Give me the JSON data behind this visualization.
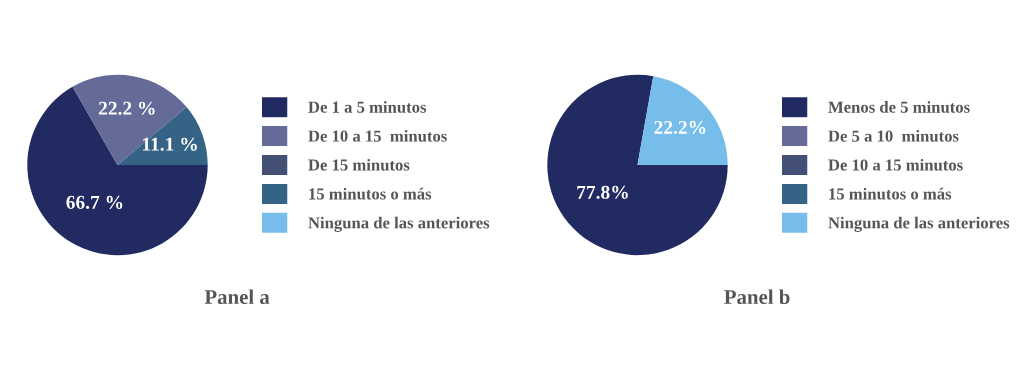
{
  "chart_data": [
    {
      "type": "pie",
      "title": "Panel a",
      "categories": [
        "De 1 a 5 minutos",
        "De 10 a 15  minutos",
        "De 15 minutos",
        "15 minutos o más",
        "Ninguna de las anteriores"
      ],
      "values": [
        66.7,
        22.2,
        0,
        11.1,
        0
      ],
      "colors": [
        "#222a62",
        "#646b98",
        "#434f75",
        "#356386",
        "#76bdec"
      ],
      "value_labels": [
        "66.7 %",
        "22.2 %",
        null,
        "11.1 %",
        null
      ],
      "legend": "right"
    },
    {
      "type": "pie",
      "title": "Panel b",
      "categories": [
        "Menos de 5 minutos",
        "De 5 a 10  minutos",
        "De 10 a 15 minutos",
        "15 minutos o más",
        "Ninguna de las anteriores"
      ],
      "values": [
        77.8,
        0,
        0,
        0,
        22.2
      ],
      "colors": [
        "#222a62",
        "#646b98",
        "#434f75",
        "#356386",
        "#76bdec"
      ],
      "value_labels": [
        "77.8%",
        null,
        null,
        null,
        "22.2%"
      ],
      "legend": "right"
    }
  ]
}
